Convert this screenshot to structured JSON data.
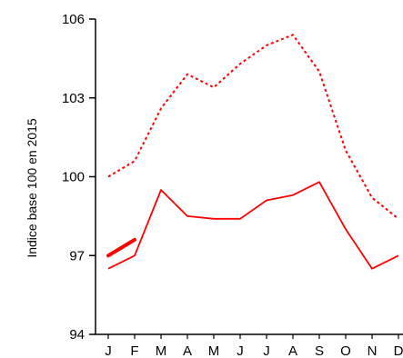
{
  "chart_data": {
    "type": "line",
    "ylabel": "Indice base 100 en 2015",
    "categories": [
      "J",
      "F",
      "M",
      "A",
      "M",
      "J",
      "J",
      "A",
      "S",
      "O",
      "N",
      "D"
    ],
    "yticks": [
      94,
      97,
      100,
      103,
      106
    ],
    "ylim": [
      94,
      106
    ],
    "grid": false,
    "series": [
      {
        "style": "dotted",
        "color": "#ff0000",
        "values": [
          100.0,
          100.6,
          102.6,
          103.9,
          103.4,
          104.3,
          105.0,
          105.4,
          104.0,
          101.0,
          99.2,
          98.4
        ]
      },
      {
        "style": "solid",
        "color": "#ff0000",
        "values": [
          96.5,
          97.0,
          99.5,
          98.5,
          98.4,
          98.4,
          99.1,
          99.3,
          99.8,
          98.0,
          96.5,
          97.0
        ]
      },
      {
        "style": "solid-bold",
        "color": "#ff0000",
        "values": [
          97.0,
          97.6,
          null,
          null,
          null,
          null,
          null,
          null,
          null,
          null,
          null,
          null
        ]
      }
    ]
  }
}
